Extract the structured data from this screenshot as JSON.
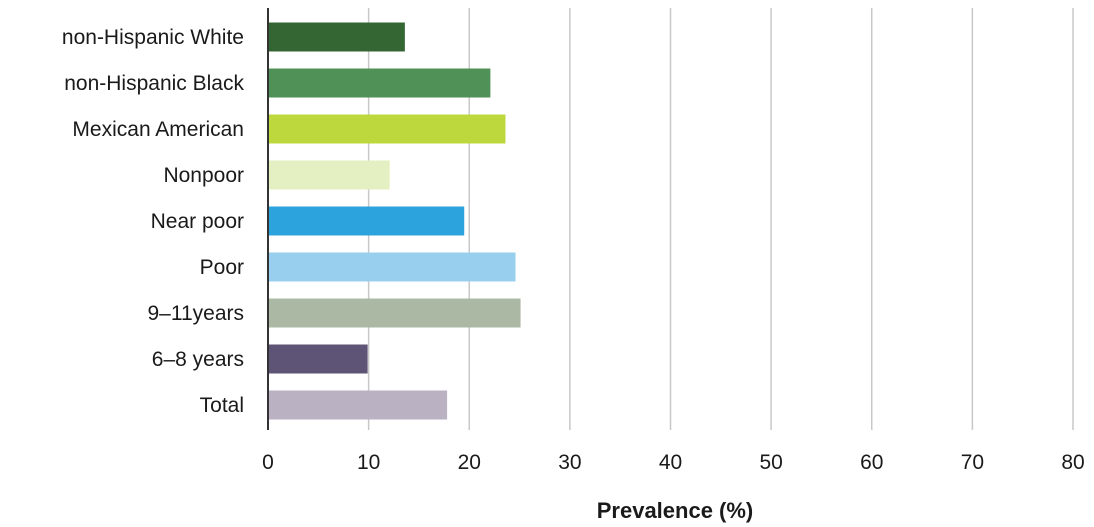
{
  "chart_data": {
    "type": "bar",
    "orientation": "horizontal",
    "categories": [
      "non-Hispanic White",
      "non-Hispanic Black",
      "Mexican American",
      "Nonpoor",
      "Near poor",
      "Poor",
      "9–11years",
      "6–8 years",
      "Total"
    ],
    "values": [
      13.6,
      22.1,
      23.6,
      12.1,
      19.5,
      24.6,
      25.1,
      9.9,
      17.8
    ],
    "colors": [
      "#336633",
      "#4f9157",
      "#bcd83c",
      "#e5f0c2",
      "#2ca3dc",
      "#99cfee",
      "#abb8a3",
      "#5e5475",
      "#bab1c3"
    ],
    "xlabel": "Prevalence (%)",
    "ylabel": "",
    "title": "",
    "xlim": [
      0,
      80
    ],
    "xticks": [
      0,
      10,
      20,
      30,
      40,
      50,
      60,
      70,
      80
    ],
    "xtick_labels": [
      "0",
      "10",
      "20",
      "30",
      "40",
      "50",
      "60",
      "70",
      "80"
    ],
    "grid": "vertical",
    "legend": "none"
  }
}
